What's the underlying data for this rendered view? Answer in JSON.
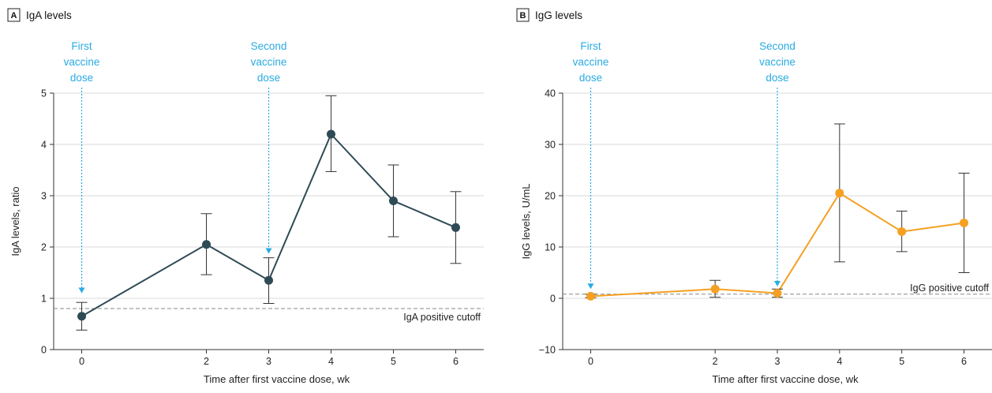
{
  "colors": {
    "panel_a_series": "#2e4a55",
    "panel_b_series": "#f5a023",
    "annotation": "#29abe2",
    "gridline": "#d9d9d9",
    "cutoff_line": "#888888",
    "axis": "#333333"
  },
  "chart_data": [
    {
      "type": "line",
      "panel_letter": "A",
      "title": "IgA levels",
      "xlabel": "Time after first vaccine dose, wk",
      "ylabel": "IgA levels, ratio",
      "xlim": [
        -0.45,
        6.45
      ],
      "ylim": [
        0,
        5
      ],
      "xticks": [
        0,
        2,
        3,
        4,
        5,
        6
      ],
      "yticks": [
        0,
        1,
        2,
        3,
        4,
        5
      ],
      "grid": true,
      "series": [
        {
          "x": [
            0,
            2,
            3,
            4,
            5,
            6
          ],
          "y": [
            0.65,
            2.05,
            1.35,
            4.2,
            2.9,
            2.38
          ],
          "error_low": [
            0.38,
            1.46,
            0.9,
            3.47,
            2.2,
            1.68
          ],
          "error_high": [
            0.92,
            2.65,
            1.79,
            4.95,
            3.6,
            3.08
          ]
        }
      ],
      "reference_line": {
        "y": 0.8,
        "label": "IgA positive cutoff"
      },
      "annotations": [
        {
          "x": 0,
          "arrow_to_y": 1.1,
          "lines": [
            "First",
            "vaccine",
            "dose"
          ]
        },
        {
          "x": 3,
          "arrow_to_y": 1.87,
          "lines": [
            "Second",
            "vaccine",
            "dose"
          ]
        }
      ]
    },
    {
      "type": "line",
      "panel_letter": "B",
      "title": "IgG levels",
      "xlabel": "Time after first vaccine dose, wk",
      "ylabel": "IgG levels, U/mL",
      "xlim": [
        -0.45,
        6.45
      ],
      "ylim": [
        -10,
        40
      ],
      "xticks": [
        0,
        2,
        3,
        4,
        5,
        6
      ],
      "yticks": [
        -10,
        0,
        10,
        20,
        30,
        40
      ],
      "grid": true,
      "series": [
        {
          "x": [
            0,
            2,
            3,
            4,
            5,
            6
          ],
          "y": [
            0.4,
            1.8,
            1.0,
            20.5,
            13.0,
            14.7
          ],
          "error_low": [
            0.1,
            0.2,
            0.2,
            7.1,
            9.1,
            5.0
          ],
          "error_high": [
            0.8,
            3.5,
            1.8,
            34.0,
            17.0,
            24.4
          ]
        }
      ],
      "reference_line": {
        "y": 0.8,
        "label": "IgG positive cutoff"
      },
      "annotations": [
        {
          "x": 0,
          "arrow_to_y": 1.8,
          "lines": [
            "First",
            "vaccine",
            "dose"
          ]
        },
        {
          "x": 3,
          "arrow_to_y": 2.3,
          "lines": [
            "Second",
            "vaccine",
            "dose"
          ]
        }
      ]
    }
  ]
}
